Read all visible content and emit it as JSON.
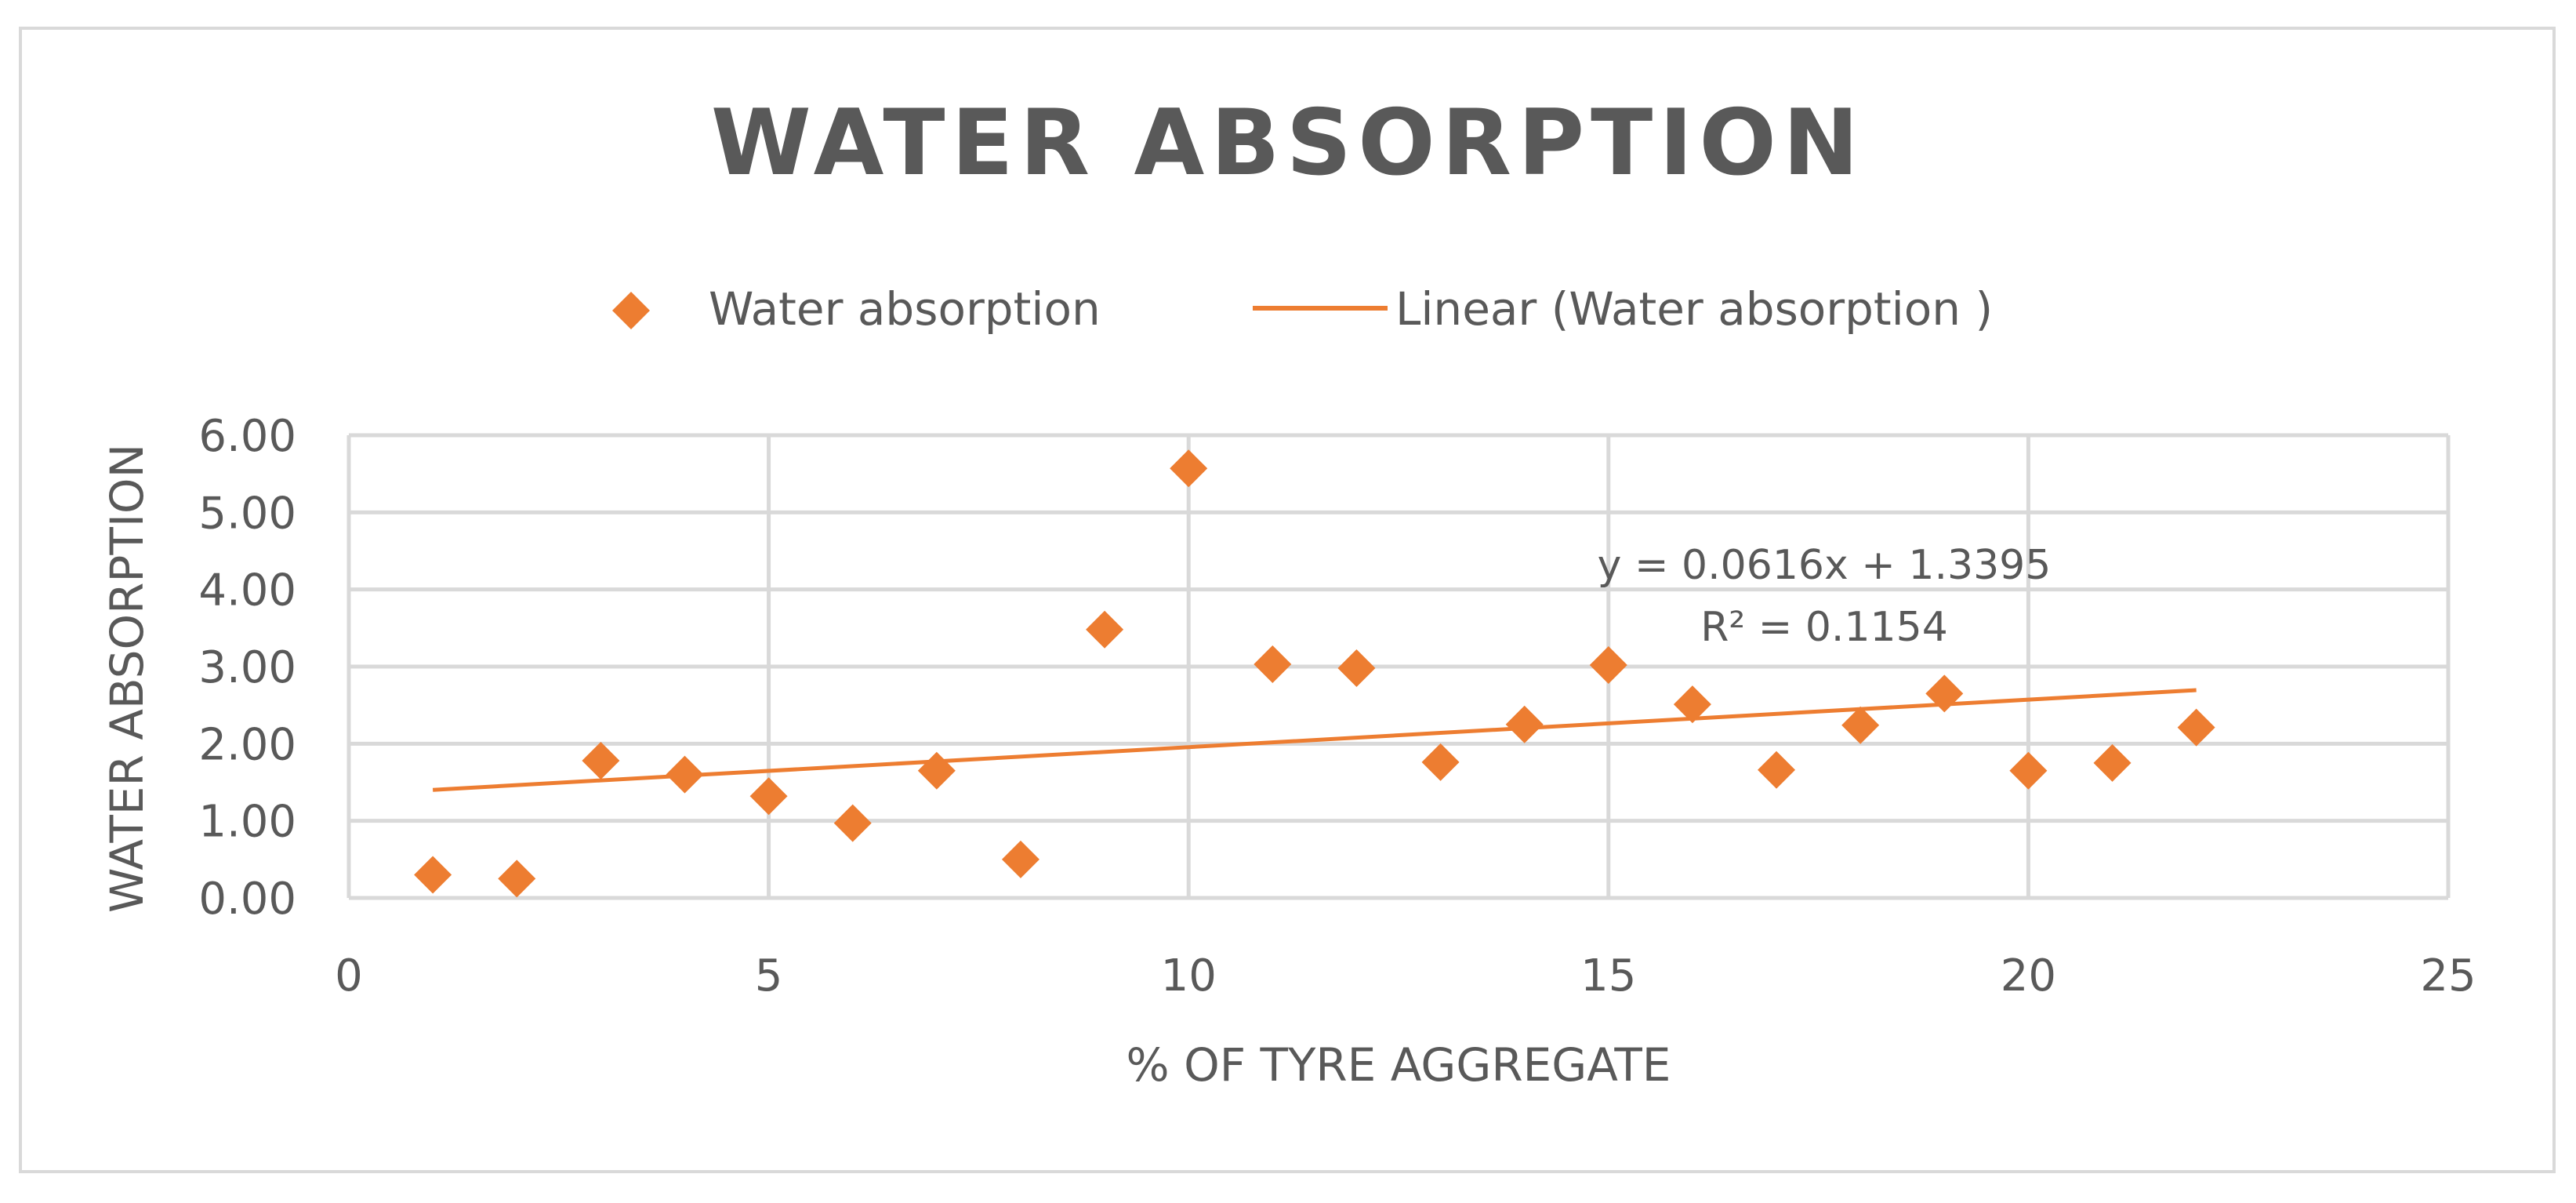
{
  "chart_data": {
    "type": "scatter",
    "title": "WATER ABSORPTION",
    "xlabel": "% OF TYRE AGGREGATE",
    "ylabel": "WATER ABSORPTION",
    "xlim": [
      0,
      25
    ],
    "ylim": [
      0,
      6
    ],
    "x_ticks": [
      "0",
      "5",
      "10",
      "15",
      "20",
      "25"
    ],
    "y_ticks": [
      "0.00",
      "1.00",
      "2.00",
      "3.00",
      "4.00",
      "5.00",
      "6.00"
    ],
    "grid": true,
    "legend_position": "top",
    "series": [
      {
        "name": "Water absorption",
        "marker": "diamond",
        "color": "#ED7D31",
        "x": [
          1,
          2,
          3,
          4,
          5,
          6,
          7,
          8,
          9,
          10,
          11,
          12,
          13,
          14,
          15,
          16,
          17,
          18,
          19,
          20,
          21,
          22
        ],
        "y": [
          0.3,
          0.25,
          1.78,
          1.6,
          1.32,
          0.97,
          1.65,
          0.5,
          3.48,
          5.57,
          3.03,
          2.98,
          1.76,
          2.25,
          3.02,
          2.51,
          1.66,
          2.24,
          2.65,
          1.65,
          1.75,
          2.21
        ]
      }
    ],
    "trendline": {
      "name": "Linear (Water absorption )",
      "type": "linear",
      "slope": 0.0616,
      "intercept": 1.3395,
      "x_range": [
        1,
        22
      ],
      "color": "#ED7D31",
      "equation_text": "y = 0.0616x + 1.3395",
      "r2_text": "R² = 0.1154"
    }
  }
}
